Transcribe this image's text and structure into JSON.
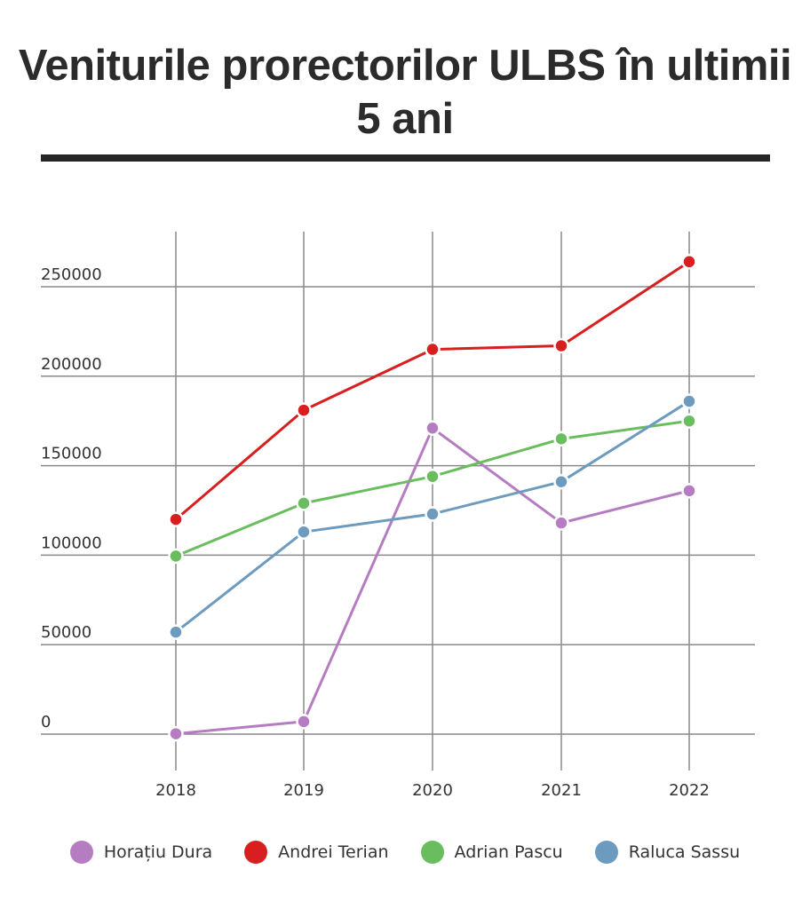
{
  "chart_data": {
    "type": "line",
    "title": "Veniturile prorectorilor ULBS în ultimii 5 ani",
    "x": [
      "2018",
      "2019",
      "2020",
      "2021",
      "2022"
    ],
    "y_ticks": [
      "0",
      "50000",
      "100000",
      "150000",
      "200000",
      "250000"
    ],
    "ylim": [
      0,
      270000
    ],
    "grid": true,
    "legend_position": "bottom",
    "series": [
      {
        "name": "Horațiu Dura",
        "color": "#b57cc1",
        "values": [
          200,
          7000,
          171000,
          118000,
          136000
        ]
      },
      {
        "name": "Andrei Terian",
        "color": "#d81e1e",
        "values": [
          120000,
          181000,
          215000,
          217000,
          264000
        ]
      },
      {
        "name": "Adrian Pascu",
        "color": "#6abd5e",
        "values": [
          99500,
          129000,
          144000,
          165000,
          175000
        ]
      },
      {
        "name": "Raluca Sassu",
        "color": "#6d9bbf",
        "values": [
          57000,
          113000,
          123000,
          141000,
          186000
        ]
      }
    ]
  }
}
